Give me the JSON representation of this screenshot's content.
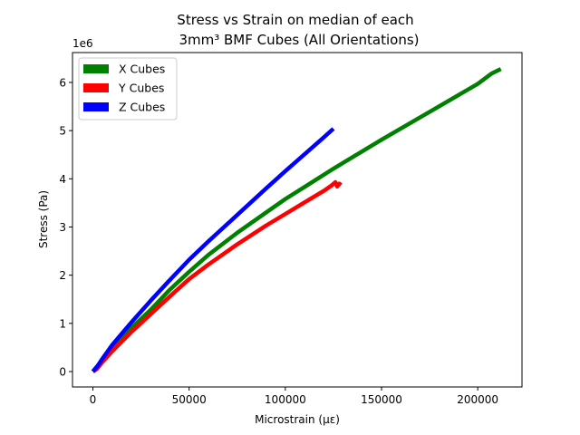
{
  "chart_data": {
    "type": "line",
    "title_line1": "Stress vs Strain on median of each",
    "title_line2": "3mm³ BMF Cubes (All Orientations)",
    "xlabel": "Microstrain (µε)",
    "ylabel": "Stress (Pa)",
    "y_multiplier_label": "1e6",
    "xlim": [
      -10600,
      223000
    ],
    "ylim": [
      -0.32,
      6.62
    ],
    "x_ticks": [
      0,
      50000,
      100000,
      150000,
      200000
    ],
    "x_tick_labels": [
      "0",
      "50000",
      "100000",
      "150000",
      "200000"
    ],
    "y_ticks": [
      0,
      1,
      2,
      3,
      4,
      5,
      6
    ],
    "y_tick_labels": [
      "0",
      "1",
      "2",
      "3",
      "4",
      "5",
      "6"
    ],
    "y_scale": 1000000,
    "legend_position": "upper-left",
    "grid": false,
    "series": [
      {
        "name": "X Cubes",
        "color": "#008000",
        "x": [
          0,
          2500,
          5000,
          10000,
          20000,
          30000,
          40000,
          50000,
          60000,
          75000,
          90000,
          100000,
          110000,
          125000,
          150000,
          175000,
          200000,
          207000,
          212000
        ],
        "y": [
          0.0,
          0.12,
          0.25,
          0.5,
          0.9,
          1.28,
          1.7,
          2.07,
          2.42,
          2.88,
          3.3,
          3.58,
          3.83,
          4.21,
          4.81,
          5.39,
          5.97,
          6.18,
          6.28
        ]
      },
      {
        "name": "Y Cubes",
        "color": "#ff0000",
        "x": [
          0,
          2000,
          5000,
          10000,
          20000,
          30000,
          40000,
          50000,
          60000,
          75000,
          90000,
          100000,
          110000,
          120000,
          124000,
          126000,
          127000,
          128000,
          129000
        ],
        "y": [
          0.0,
          0.05,
          0.2,
          0.42,
          0.82,
          1.19,
          1.56,
          1.92,
          2.22,
          2.64,
          3.03,
          3.27,
          3.51,
          3.75,
          3.86,
          3.93,
          3.84,
          3.9,
          3.87
        ]
      },
      {
        "name": "Z Cubes",
        "color": "#0000ff",
        "x": [
          0,
          2500,
          5000,
          10000,
          20000,
          30000,
          40000,
          50000,
          60000,
          75000,
          90000,
          100000,
          110000,
          120000,
          125000
        ],
        "y": [
          0.0,
          0.12,
          0.27,
          0.55,
          1.02,
          1.47,
          1.9,
          2.32,
          2.7,
          3.25,
          3.8,
          4.16,
          4.51,
          4.86,
          5.04
        ]
      }
    ]
  }
}
